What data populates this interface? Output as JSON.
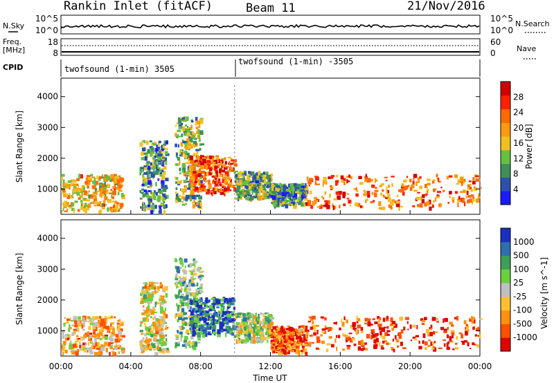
{
  "header": {
    "station": "Rankin Inlet (fitACF)",
    "beam": "Beam 11",
    "date": "21/Nov/2016"
  },
  "strip1": {
    "left_label": "N.Sky",
    "right_label": "N.Search",
    "left_ticks": [
      "10^5",
      "10^0"
    ],
    "right_ticks": [
      "10^5",
      "10^0"
    ]
  },
  "strip2": {
    "left_label_line1": "Freq.",
    "left_label_line2": "[MHz]",
    "right_label": "Nave",
    "left_ticks": [
      "18",
      "8"
    ],
    "right_ticks": [
      "60",
      "0"
    ]
  },
  "cpid": {
    "label": "CPID",
    "segments": [
      {
        "text": "twofsound (1-min) 3505"
      },
      {
        "text": "twofsound (1-min) -3505"
      }
    ]
  },
  "colors": {
    "power": [
      "#1a1aff",
      "#2d4fb0",
      "#3f8f5a",
      "#66c040",
      "#f0c020",
      "#ff9a10",
      "#ff6a00",
      "#ff2000",
      "#d00000"
    ],
    "velocity": [
      "#e00000",
      "#ff5000",
      "#ff9010",
      "#ffc030",
      "#c0c0c0",
      "#6ad040",
      "#3f9f5a",
      "#2f6fb0",
      "#1a30c0"
    ]
  },
  "chart_data": [
    {
      "type": "heatmap",
      "panel": "power",
      "ylabel": "Slant Range [km]",
      "colorbar_label": "Power [dB]",
      "colorbar_ticks": [
        "4",
        "8",
        "12",
        "16",
        "20",
        "24",
        "28"
      ],
      "y_ticks": [
        "1000",
        "2000",
        "3000",
        "4000"
      ],
      "ylim": [
        180,
        4600
      ],
      "xlim": [
        0,
        24
      ],
      "x_ticks": [
        "00:00",
        "04:00",
        "08:00",
        "12:00",
        "16:00",
        "20:00",
        "00:00"
      ],
      "regions": [
        {
          "t": [
            0.0,
            3.5
          ],
          "r": [
            300,
            1500
          ],
          "level": 0.55
        },
        {
          "t": [
            4.5,
            6.0
          ],
          "r": [
            300,
            2600
          ],
          "level": 0.3
        },
        {
          "t": [
            6.5,
            8.0
          ],
          "r": [
            500,
            3400
          ],
          "level": 0.4
        },
        {
          "t": [
            7.3,
            9.9
          ],
          "r": [
            900,
            2100
          ],
          "level": 0.75
        },
        {
          "t": [
            9.9,
            12.0
          ],
          "r": [
            700,
            1600
          ],
          "level": 0.35
        },
        {
          "t": [
            12.0,
            14.0
          ],
          "r": [
            500,
            1200
          ],
          "level": 0.3
        },
        {
          "t": [
            14.0,
            24.0
          ],
          "r": [
            400,
            1500
          ],
          "level": 0.7
        }
      ]
    },
    {
      "type": "heatmap",
      "panel": "velocity",
      "ylabel": "Slant Range [km]",
      "xlabel": "Time UT",
      "colorbar_label": "Velocity [m s^-1]",
      "colorbar_ticks": [
        "1000",
        "500",
        "100",
        "25",
        "-25",
        "-100",
        "-500",
        "-1000"
      ],
      "y_ticks": [
        "1000",
        "2000",
        "3000",
        "4000"
      ],
      "ylim": [
        180,
        4600
      ],
      "xlim": [
        0,
        24
      ],
      "x_ticks": [
        "00:00",
        "04:00",
        "08:00",
        "12:00",
        "16:00",
        "20:00",
        "00:00"
      ],
      "regions": [
        {
          "t": [
            0.0,
            3.5
          ],
          "r": [
            300,
            1500
          ],
          "level": 0.35
        },
        {
          "t": [
            4.5,
            6.0
          ],
          "r": [
            300,
            2600
          ],
          "level": 0.45
        },
        {
          "t": [
            6.5,
            8.0
          ],
          "r": [
            500,
            3400
          ],
          "level": 0.6
        },
        {
          "t": [
            7.3,
            9.9
          ],
          "r": [
            900,
            2100
          ],
          "level": 0.85
        },
        {
          "t": [
            9.9,
            12.0
          ],
          "r": [
            700,
            1600
          ],
          "level": 0.55
        },
        {
          "t": [
            12.0,
            14.0
          ],
          "r": [
            300,
            1200
          ],
          "level": 0.2
        },
        {
          "t": [
            14.0,
            24.0
          ],
          "r": [
            400,
            1500
          ],
          "level": 0.15
        }
      ]
    }
  ]
}
